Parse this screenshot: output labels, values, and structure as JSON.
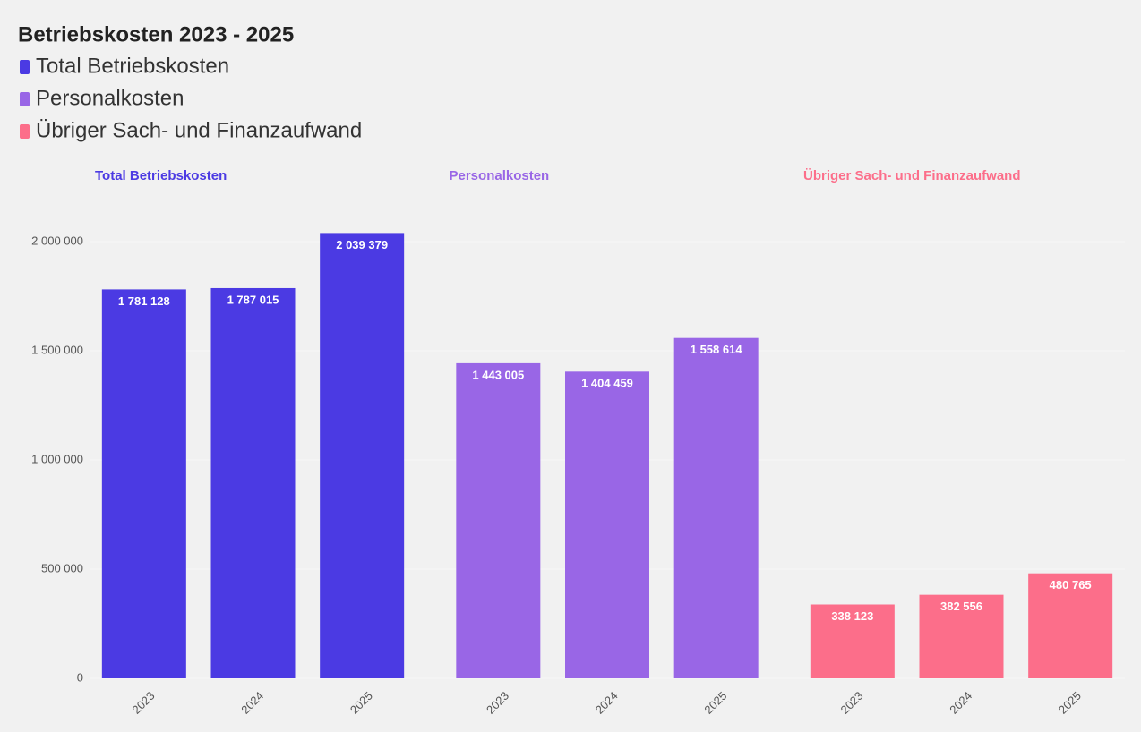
{
  "chart_data": {
    "type": "bar",
    "title": "Betriebskosten 2023 - 2025",
    "categories": [
      "2023",
      "2024",
      "2025"
    ],
    "series": [
      {
        "name": "Total Betriebskosten",
        "color": "#4b3ae3",
        "values": [
          1781128,
          1787015,
          2039379
        ],
        "value_labels": [
          "1 781 128",
          "1 787 015",
          "2 039 379"
        ]
      },
      {
        "name": "Personalkosten",
        "color": "#9966e6",
        "values": [
          1443005,
          1404459,
          1558614
        ],
        "value_labels": [
          "1 443 005",
          "1 404 459",
          "1 558 614"
        ]
      },
      {
        "name": "Übriger Sach- und Finanzaufwand",
        "color": "#fc6e8a",
        "values": [
          338123,
          382556,
          480765
        ],
        "value_labels": [
          "338 123",
          "382 556",
          "480 765"
        ]
      }
    ],
    "ylim": [
      0,
      2100000
    ],
    "yticks": [
      0,
      {
        "value": 500000,
        "label": "500 000"
      },
      {
        "value": 1000000,
        "label": "1 000 000"
      },
      {
        "value": 1500000,
        "label": "1 500 000"
      },
      {
        "value": 2000000,
        "label": "2 000 000"
      }
    ],
    "grid": true
  }
}
